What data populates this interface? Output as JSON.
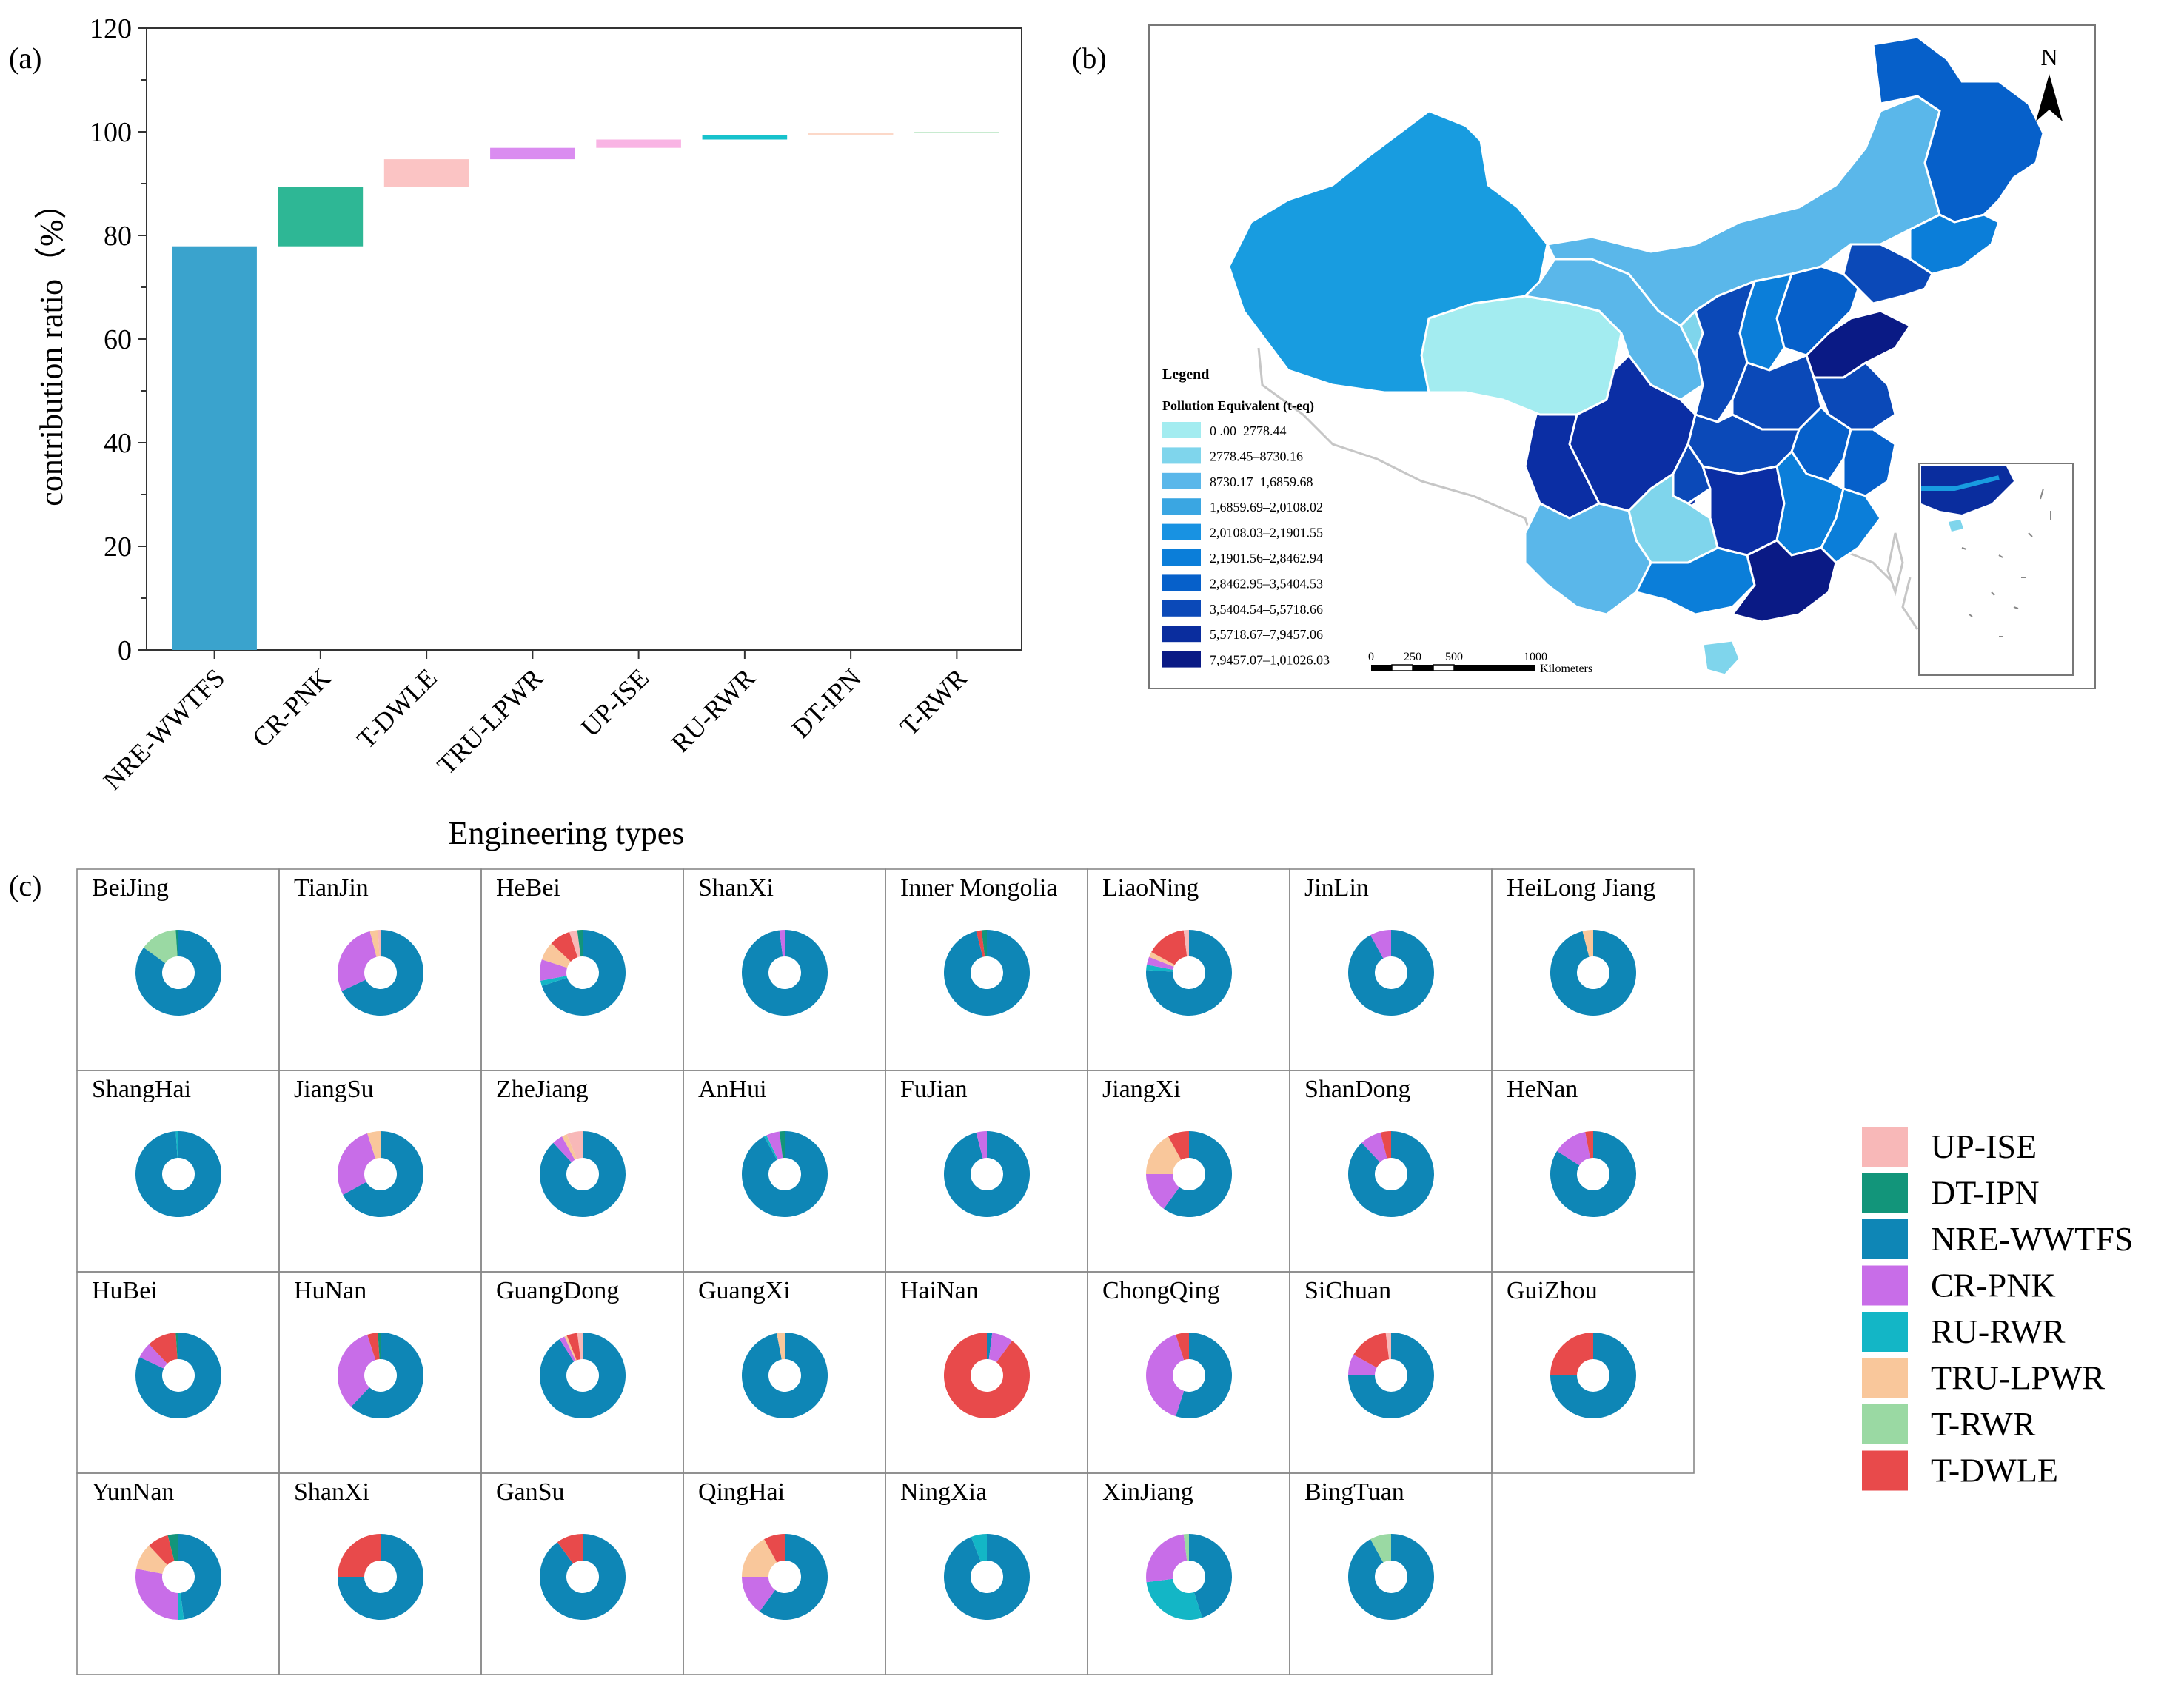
{
  "palette": {
    "UP-ISE": "#f8b8b8",
    "DT-IPN": "#12957a",
    "NRE-WWTFS": "#0e86b6",
    "CR-PNK": "#c86de8",
    "RU-RWR": "#13b6c6",
    "TRU-LPWR": "#f9c79b",
    "T-RWR": "#9ad9a3",
    "T-DWLE": "#e84a4b"
  },
  "chart_data": [
    {
      "type": "bar",
      "subtype": "waterfall",
      "panel_label": "(a)",
      "title": "",
      "xlabel": "Engineering types",
      "ylabel": "contribution ratio（%）",
      "ylim": [
        0,
        120
      ],
      "yticks": [
        0,
        20,
        40,
        60,
        80,
        100,
        120
      ],
      "yticks_text": [
        "0",
        "20",
        "40",
        "60",
        "80",
        "100",
        "120"
      ],
      "categories": [
        "NRE-WWTFS",
        "CR-PNK",
        "T-DWLE",
        "TRU-LPWR",
        "UP-ISE",
        "RU-RWR",
        "DT-IPN",
        "T-RWR"
      ],
      "values": [
        77.9,
        11.4,
        5.4,
        2.2,
        1.6,
        0.9,
        0.4,
        0.2
      ],
      "colors": [
        "#3aa3cd",
        "#2eb795",
        "#fbc4c4",
        "#da8cf0",
        "#f9b4e4",
        "#17c2cc",
        "#fcd8c8",
        "#c8ebd0"
      ]
    },
    {
      "type": "choropleth",
      "panel_label": "(b)",
      "legend_title": "Legend",
      "legend_subtitle": "Pollution Equivalent (t-eq)",
      "legend_classes": [
        "0 .00–2778.44",
        "2778.45–8730.16",
        "8730.17–1,6859.68",
        "1,6859.69–2,0108.02",
        "2,0108.03–2,1901.55",
        "2,1901.56–2,8462.94",
        "2,8462.95–3,5404.53",
        "3,5404.54–5,5718.66",
        "5,5718.67–7,9457.06",
        "7,9457.07–1,01026.03"
      ],
      "legend_colors": [
        "#a3ecf0",
        "#7fd5ec",
        "#5ab7ea",
        "#3aa6e2",
        "#1892e2",
        "#0b7ed9",
        "#0660ca",
        "#0b49b8",
        "#0a2d9e",
        "#0a1a85"
      ],
      "scale_labels": [
        "0",
        "250",
        "500",
        "1000"
      ],
      "scale_unit": "Kilometers",
      "north_label": "N"
    },
    {
      "type": "pie",
      "subtype": "donut-grid",
      "panel_label": "(c)",
      "series_names": [
        "UP-ISE",
        "DT-IPN",
        "NRE-WWTFS",
        "CR-PNK",
        "RU-RWR",
        "TRU-LPWR",
        "T-RWR",
        "T-DWLE"
      ],
      "legend": [
        "UP-ISE",
        "DT-IPN",
        "NRE-WWTFS",
        "CR-PNK",
        "RU-RWR",
        "TRU-LPWR",
        "T-RWR",
        "T-DWLE"
      ],
      "regions": [
        {
          "name": "BeiJing",
          "values": [
            0,
            1,
            85,
            0,
            0,
            0,
            14,
            0
          ]
        },
        {
          "name": "TianJin",
          "values": [
            1,
            0,
            68,
            28,
            0,
            3,
            0,
            0
          ]
        },
        {
          "name": "HeBei",
          "values": [
            3,
            2,
            70,
            8,
            2,
            7,
            0,
            8
          ]
        },
        {
          "name": "ShanXi",
          "values": [
            0,
            0,
            98,
            2,
            0,
            0,
            0,
            0
          ]
        },
        {
          "name": "Inner Mongolia",
          "values": [
            0,
            2,
            96,
            0,
            0,
            0,
            0,
            2
          ]
        },
        {
          "name": "LiaoNing",
          "values": [
            2,
            0,
            76,
            3,
            2,
            2,
            0,
            15
          ]
        },
        {
          "name": "JinLin",
          "values": [
            0,
            0,
            92,
            8,
            0,
            0,
            0,
            0
          ]
        },
        {
          "name": "HeiLong Jiang",
          "values": [
            0,
            0,
            96,
            0,
            0,
            4,
            0,
            0
          ]
        },
        {
          "name": "ShangHai",
          "values": [
            0,
            0,
            99,
            0,
            1,
            0,
            0,
            0
          ]
        },
        {
          "name": "JiangSu",
          "values": [
            0,
            0,
            67,
            28,
            0,
            5,
            0,
            0
          ]
        },
        {
          "name": "ZheJiang",
          "values": [
            6,
            0,
            88,
            4,
            0,
            2,
            0,
            0
          ]
        },
        {
          "name": "AnHui",
          "values": [
            0,
            2,
            92,
            5,
            1,
            0,
            0,
            0
          ]
        },
        {
          "name": "FuJian",
          "values": [
            0,
            0,
            96,
            4,
            0,
            0,
            0,
            0
          ]
        },
        {
          "name": "JiangXi",
          "values": [
            0,
            0,
            60,
            15,
            0,
            17,
            0,
            8
          ]
        },
        {
          "name": "ShanDong",
          "values": [
            0,
            0,
            88,
            8,
            0,
            0,
            0,
            4
          ]
        },
        {
          "name": "HeNan",
          "values": [
            0,
            0,
            84,
            13,
            0,
            0,
            0,
            3
          ]
        },
        {
          "name": "HuBei",
          "values": [
            0,
            1,
            82,
            6,
            0,
            0,
            0,
            11
          ]
        },
        {
          "name": "HuNan",
          "values": [
            0,
            1,
            62,
            33,
            0,
            0,
            0,
            4
          ]
        },
        {
          "name": "GuangDong",
          "values": [
            2,
            0,
            91,
            2,
            0,
            1,
            0,
            4
          ]
        },
        {
          "name": "GuangXi",
          "values": [
            0,
            0,
            97,
            0,
            0,
            3,
            0,
            0
          ]
        },
        {
          "name": "HaiNan",
          "values": [
            0,
            0,
            2,
            8,
            0,
            0,
            0,
            90
          ]
        },
        {
          "name": "ChongQing",
          "values": [
            0,
            0,
            55,
            40,
            0,
            0,
            0,
            5
          ]
        },
        {
          "name": "SiChuan",
          "values": [
            2,
            0,
            75,
            8,
            0,
            0,
            0,
            15
          ]
        },
        {
          "name": "GuiZhou",
          "values": [
            0,
            0,
            75,
            0,
            0,
            0,
            0,
            25
          ]
        },
        {
          "name": "YunNan",
          "values": [
            0,
            4,
            48,
            28,
            2,
            10,
            0,
            8
          ]
        },
        {
          "name": "ShanXi",
          "values": [
            0,
            0,
            75,
            0,
            0,
            0,
            0,
            25
          ]
        },
        {
          "name": "GanSu",
          "values": [
            0,
            0,
            90,
            0,
            0,
            0,
            0,
            10
          ]
        },
        {
          "name": "QingHai",
          "values": [
            0,
            0,
            60,
            15,
            0,
            17,
            0,
            8
          ]
        },
        {
          "name": "NingXia",
          "values": [
            0,
            0,
            94,
            0,
            6,
            0,
            0,
            0
          ]
        },
        {
          "name": "XinJiang",
          "values": [
            0,
            0,
            45,
            25,
            28,
            0,
            2,
            0
          ]
        },
        {
          "name": "BingTuan",
          "values": [
            0,
            0,
            92,
            0,
            0,
            0,
            8,
            0
          ]
        }
      ]
    }
  ]
}
